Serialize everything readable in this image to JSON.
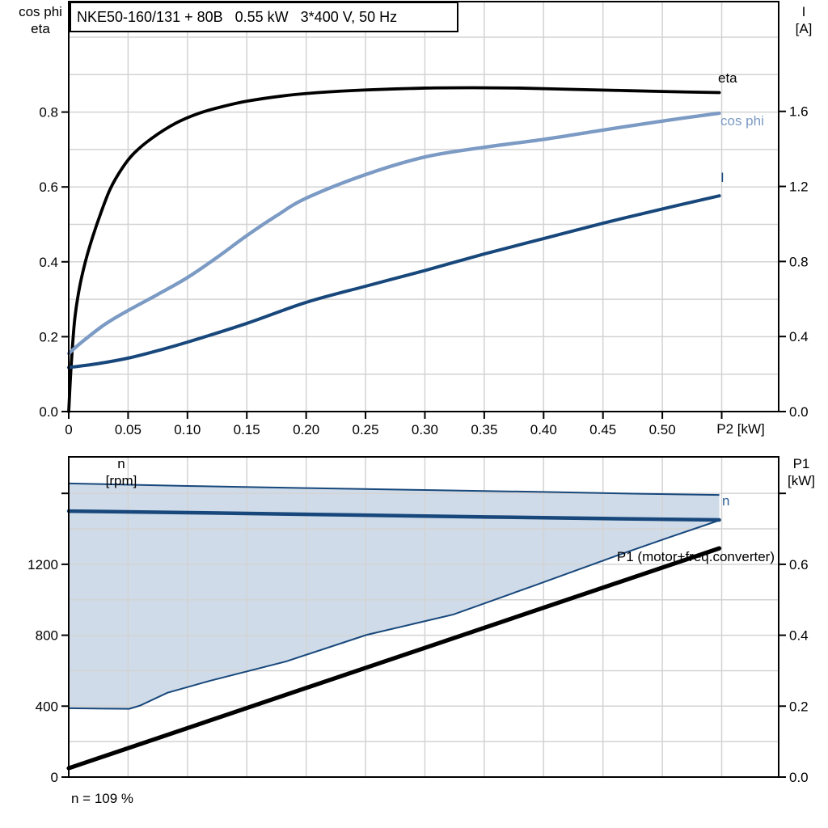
{
  "page": {
    "background": "#ffffff"
  },
  "colors": {
    "grid": "#d3d3d3",
    "frame": "#000000",
    "band_fill": "#cfdbe8",
    "band_edge": "#17477b",
    "eta_line": "#000000",
    "cos_phi_line": "#7b9ac4",
    "current_line": "#17477b",
    "p1_line": "#000000"
  },
  "chart_data": [
    {
      "type": "line",
      "title": "NKE50-160/131 + 80B   0.55 kW   3*400 V, 50 Hz",
      "x_unit_label": "P2 [kW]",
      "ylabel_left_lines": [
        "cos phi",
        "eta"
      ],
      "ylabel_right_lines": [
        "I",
        "[A]"
      ],
      "x_range": [
        0,
        0.598
      ],
      "y_left_range": [
        0,
        1.095
      ],
      "y_right_range": [
        0,
        2.185
      ],
      "x_grid": [
        0.05,
        0.1,
        0.15,
        0.2,
        0.25,
        0.3,
        0.35,
        0.4,
        0.45,
        0.5,
        0.55
      ],
      "y_grid": [
        0.1,
        0.2,
        0.3,
        0.4,
        0.5,
        0.6,
        0.7,
        0.8,
        0.9,
        1.0
      ],
      "left_ticks": [
        {
          "v": 0,
          "label": "0.0"
        },
        {
          "v": 0.2,
          "label": "0.2"
        },
        {
          "v": 0.4,
          "label": "0.4"
        },
        {
          "v": 0.6,
          "label": "0.6"
        },
        {
          "v": 0.8,
          "label": "0.8"
        }
      ],
      "right_ticks": [
        {
          "v": 0,
          "label": "0.0"
        },
        {
          "v": 0.4,
          "label": "0.4"
        },
        {
          "v": 0.8,
          "label": "0.8"
        },
        {
          "v": 1.2,
          "label": "1.2"
        },
        {
          "v": 1.6,
          "label": "1.6"
        }
      ],
      "x_ticks": [
        {
          "v": 0,
          "label": "0"
        },
        {
          "v": 0.05,
          "label": "0.05"
        },
        {
          "v": 0.1,
          "label": "0.10"
        },
        {
          "v": 0.15,
          "label": "0.15"
        },
        {
          "v": 0.2,
          "label": "0.20"
        },
        {
          "v": 0.25,
          "label": "0.25"
        },
        {
          "v": 0.3,
          "label": "0.30"
        },
        {
          "v": 0.35,
          "label": "0.35"
        },
        {
          "v": 0.4,
          "label": "0.40"
        },
        {
          "v": 0.45,
          "label": "0.45"
        },
        {
          "v": 0.5,
          "label": "0.50"
        },
        {
          "v": 0.55,
          "label": ""
        }
      ],
      "series": [
        {
          "name": "eta",
          "axis": "left",
          "color": "#000000",
          "width": 3.8,
          "points": [
            [
              0,
              0
            ],
            [
              0.002,
              0.12
            ],
            [
              0.005,
              0.245
            ],
            [
              0.009,
              0.33
            ],
            [
              0.014,
              0.4
            ],
            [
              0.02,
              0.465
            ],
            [
              0.027,
              0.53
            ],
            [
              0.035,
              0.595
            ],
            [
              0.045,
              0.65
            ],
            [
              0.055,
              0.69
            ],
            [
              0.07,
              0.73
            ],
            [
              0.09,
              0.77
            ],
            [
              0.11,
              0.797
            ],
            [
              0.13,
              0.815
            ],
            [
              0.15,
              0.829
            ],
            [
              0.18,
              0.843
            ],
            [
              0.21,
              0.852
            ],
            [
              0.25,
              0.859
            ],
            [
              0.3,
              0.864
            ],
            [
              0.34,
              0.865
            ],
            [
              0.38,
              0.864
            ],
            [
              0.42,
              0.861
            ],
            [
              0.46,
              0.858
            ],
            [
              0.5,
              0.855
            ],
            [
              0.548,
              0.852
            ]
          ]
        },
        {
          "name": "cos phi",
          "axis": "left",
          "color": "#7b9ac4",
          "width": 4.3,
          "points": [
            [
              0,
              0.155
            ],
            [
              0.01,
              0.183
            ],
            [
              0.03,
              0.232
            ],
            [
              0.05,
              0.27
            ],
            [
              0.075,
              0.313
            ],
            [
              0.1,
              0.358
            ],
            [
              0.125,
              0.412
            ],
            [
              0.15,
              0.47
            ],
            [
              0.175,
              0.523
            ],
            [
              0.2,
              0.57
            ],
            [
              0.25,
              0.633
            ],
            [
              0.3,
              0.68
            ],
            [
              0.35,
              0.706
            ],
            [
              0.4,
              0.727
            ],
            [
              0.45,
              0.752
            ],
            [
              0.5,
              0.776
            ],
            [
              0.548,
              0.797
            ]
          ]
        },
        {
          "name": "I",
          "axis": "right",
          "color": "#17477b",
          "width": 4,
          "points": [
            [
              0,
              0.235
            ],
            [
              0.025,
              0.256
            ],
            [
              0.05,
              0.285
            ],
            [
              0.075,
              0.325
            ],
            [
              0.1,
              0.37
            ],
            [
              0.15,
              0.47
            ],
            [
              0.2,
              0.582
            ],
            [
              0.25,
              0.668
            ],
            [
              0.3,
              0.752
            ],
            [
              0.35,
              0.84
            ],
            [
              0.4,
              0.922
            ],
            [
              0.45,
              1.004
            ],
            [
              0.5,
              1.08
            ],
            [
              0.548,
              1.15
            ]
          ]
        }
      ]
    },
    {
      "type": "line",
      "note": "n = 109 %",
      "ylabel_left_lines": [
        "n",
        "[rpm]"
      ],
      "ylabel_right_lines": [
        "P1",
        "[kW]"
      ],
      "x_range": [
        0,
        0.598
      ],
      "y_left_range": [
        0,
        1806
      ],
      "y_right_range": [
        0,
        0.903
      ],
      "x_grid": [
        0.05,
        0.1,
        0.15,
        0.2,
        0.25,
        0.3,
        0.35,
        0.4,
        0.45,
        0.5,
        0.55
      ],
      "y_grid": [
        200,
        400,
        600,
        800,
        1000,
        1200,
        1400,
        1600
      ],
      "left_ticks": [
        {
          "v": 0,
          "label": "0"
        },
        {
          "v": 400,
          "label": "400"
        },
        {
          "v": 800,
          "label": "800"
        },
        {
          "v": 1200,
          "label": "1200"
        },
        {
          "v": 1600,
          "label": ""
        }
      ],
      "right_ticks": [
        {
          "v": 0,
          "label": "0.0"
        },
        {
          "v": 0.2,
          "label": "0.2"
        },
        {
          "v": 0.4,
          "label": "0.4"
        },
        {
          "v": 0.6,
          "label": "0.6"
        },
        {
          "v": 0.8,
          "label": ""
        }
      ],
      "band": {
        "fill": "#cfdbe8",
        "edge": "#17477b",
        "upper": [
          [
            0,
            1656
          ],
          [
            0.1,
            1642
          ],
          [
            0.2,
            1630
          ],
          [
            0.3,
            1619
          ],
          [
            0.4,
            1608
          ],
          [
            0.48,
            1598
          ],
          [
            0.548,
            1591
          ]
        ],
        "lower": [
          [
            0,
            388
          ],
          [
            0.03,
            386
          ],
          [
            0.051,
            385
          ],
          [
            0.06,
            403
          ],
          [
            0.083,
            475
          ],
          [
            0.119,
            543
          ],
          [
            0.183,
            652
          ],
          [
            0.251,
            802
          ],
          [
            0.324,
            917
          ],
          [
            0.39,
            1075
          ],
          [
            0.46,
            1245
          ],
          [
            0.505,
            1350
          ],
          [
            0.548,
            1448
          ]
        ]
      },
      "series": [
        {
          "name": "n",
          "axis": "left",
          "color": "#17477b",
          "width": 4.5,
          "points": [
            [
              0,
              1500
            ],
            [
              0.15,
              1487
            ],
            [
              0.3,
              1472
            ],
            [
              0.45,
              1458
            ],
            [
              0.548,
              1450
            ]
          ]
        },
        {
          "name": "P1 (motor+freq.converter)",
          "axis": "right",
          "color": "#000000",
          "width": 5.2,
          "points": [
            [
              0,
              0.025
            ],
            [
              0.548,
              0.645
            ]
          ]
        }
      ]
    }
  ]
}
